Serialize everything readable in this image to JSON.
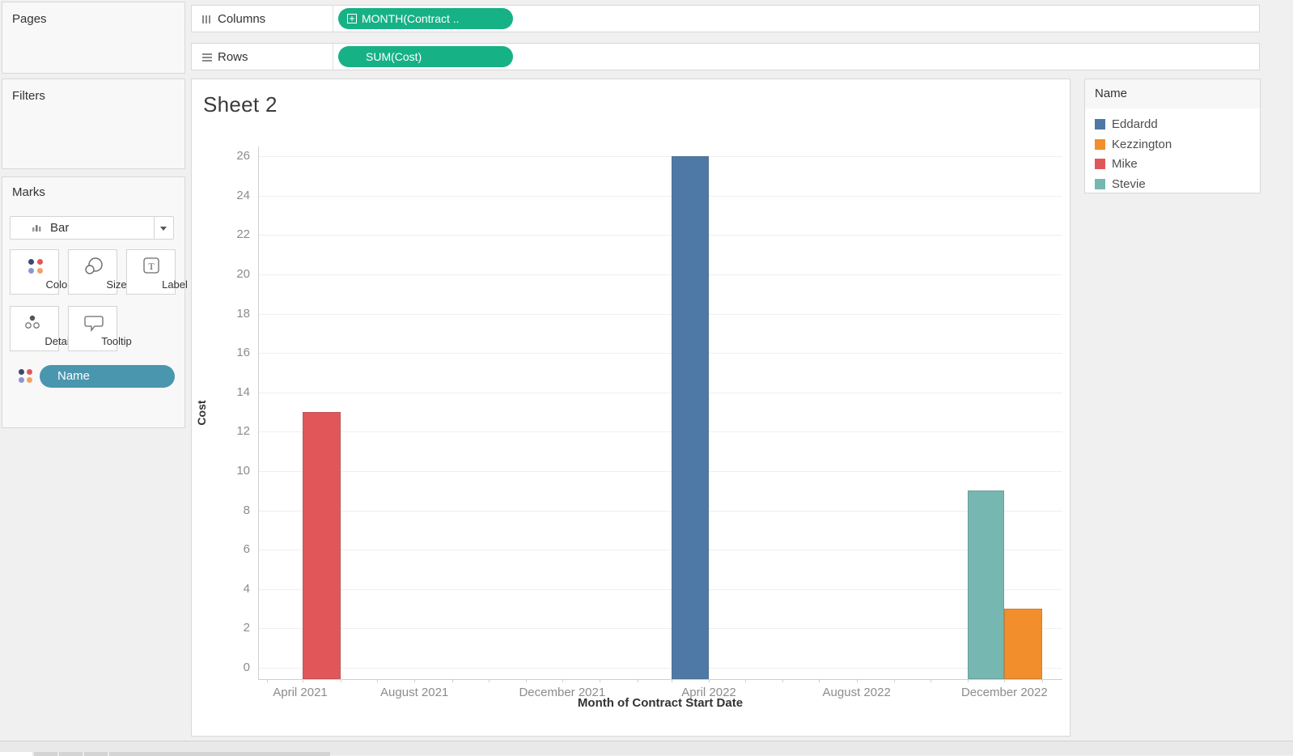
{
  "shelves": {
    "columns_label": "Columns",
    "rows_label": "Rows",
    "columns_pill": "MONTH(Contract ..",
    "rows_pill": "SUM(Cost)",
    "pill_color": "#17b186"
  },
  "panels": {
    "pages_label": "Pages",
    "filters_label": "Filters",
    "marks_label": "Marks",
    "mark_type": "Bar",
    "mark_buttons": [
      "Color",
      "Size",
      "Label",
      "Detail",
      "Tooltip"
    ],
    "color_pill": {
      "label": "Name",
      "color": "#4a96af"
    }
  },
  "legend": {
    "title": "Name",
    "items": [
      {
        "label": "Eddardd",
        "color": "#4e79a7"
      },
      {
        "label": "Kezzington",
        "color": "#f28e2b"
      },
      {
        "label": "Mike",
        "color": "#e15759"
      },
      {
        "label": "Stevie",
        "color": "#76b7b2"
      }
    ]
  },
  "chart_data": {
    "type": "bar",
    "title": "Sheet 2",
    "xlabel": "Month of Contract Start Date",
    "ylabel": "Cost",
    "ylim": [
      0,
      26
    ],
    "yticks": [
      0,
      2,
      4,
      6,
      8,
      10,
      12,
      14,
      16,
      18,
      20,
      22,
      24,
      26
    ],
    "xticklabels": [
      "April 2021",
      "August 2021",
      "December 2021",
      "April 2022",
      "August 2022",
      "December 2022"
    ],
    "grid": true,
    "legend_position": "right",
    "bars": [
      {
        "name": "Mike",
        "month": "May 2021",
        "value": 13,
        "color": "#e15759"
      },
      {
        "name": "Eddardd",
        "month": "March 2022",
        "value": 26,
        "color": "#4e79a7"
      },
      {
        "name": "Stevie",
        "month": "November 2022",
        "value": 9,
        "color": "#76b7b2"
      },
      {
        "name": "Kezzington",
        "month": "December 2022",
        "value": 3,
        "color": "#f28e2b"
      }
    ]
  }
}
